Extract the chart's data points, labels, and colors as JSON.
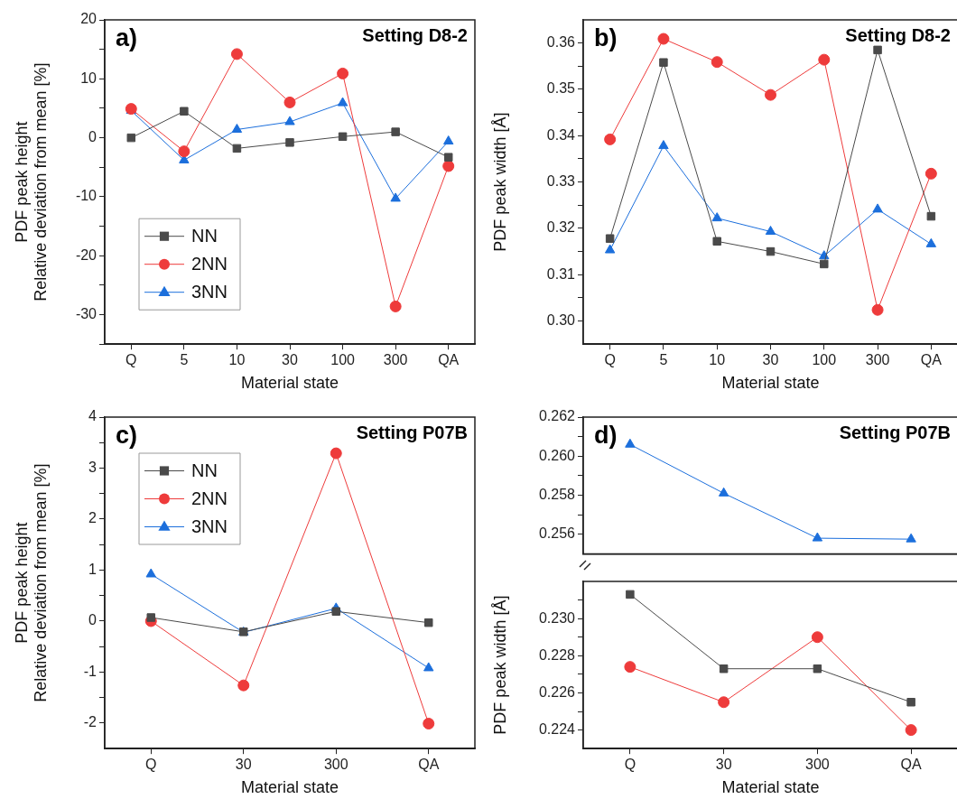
{
  "chart_data": [
    {
      "type": "line",
      "title": "Setting D8-2",
      "annotations": [
        "a)"
      ],
      "xlabel": "Material state",
      "ylabel": "PDF peak height\nRelative deviation from mean [%]",
      "categories": [
        "Q",
        "5",
        "10",
        "30",
        "100",
        "300",
        "QA"
      ],
      "ylim": [
        -35,
        20
      ],
      "yticks": [
        {
          "value": -35,
          "label": null
        },
        -30,
        {
          "value": -25,
          "label": null
        },
        -20,
        {
          "value": -15,
          "label": null
        },
        -10,
        {
          "value": -5,
          "label": null
        },
        0,
        {
          "value": 5,
          "label": null
        },
        10,
        {
          "value": 15,
          "label": null
        },
        20
      ],
      "legend": "bottom left",
      "series": [
        {
          "name": "NN",
          "color": "#4a4a4a",
          "marker": "square",
          "values": [
            0,
            4.5,
            -1.8,
            -0.8,
            0.2,
            1.0,
            -3.3
          ]
        },
        {
          "name": "2NN",
          "color": "#ee3b3b",
          "marker": "circle",
          "values": [
            4.9,
            -2.3,
            14.2,
            6.0,
            10.9,
            -28.6,
            -4.8
          ]
        },
        {
          "name": "3NN",
          "color": "#1c6fdc",
          "marker": "triangle",
          "values": [
            4.6,
            -3.8,
            1.4,
            2.7,
            5.9,
            -10.3,
            -0.6
          ]
        }
      ]
    },
    {
      "type": "line",
      "title": "Setting D8-2",
      "annotations": [
        "b)"
      ],
      "xlabel": "Material state",
      "ylabel": "PDF peak width [Å]",
      "categories": [
        "Q",
        "5",
        "10",
        "30",
        "100",
        "300",
        "QA"
      ],
      "ylim": [
        0.295,
        0.365
      ],
      "yticks": [
        {
          "value": 0.3,
          "label": "0.30"
        },
        {
          "value": 0.305,
          "label": null
        },
        {
          "value": 0.31,
          "label": "0.31"
        },
        {
          "value": 0.315,
          "label": null
        },
        {
          "value": 0.32,
          "label": "0.32"
        },
        {
          "value": 0.325,
          "label": null
        },
        {
          "value": 0.33,
          "label": "0.33"
        },
        {
          "value": 0.335,
          "label": null
        },
        {
          "value": 0.34,
          "label": "0.34"
        },
        {
          "value": 0.345,
          "label": null
        },
        {
          "value": 0.35,
          "label": "0.35"
        },
        {
          "value": 0.355,
          "label": null
        },
        {
          "value": 0.36,
          "label": "0.36"
        }
      ],
      "series": [
        {
          "color": "#4a4a4a",
          "marker": "square",
          "values": [
            0.3178,
            0.3558,
            0.3172,
            0.315,
            0.3123,
            0.3585,
            0.3226
          ]
        },
        {
          "color": "#ee3b3b",
          "marker": "circle",
          "values": [
            0.3392,
            0.3609,
            0.3559,
            0.3488,
            0.3564,
            0.3024,
            0.3318
          ]
        },
        {
          "color": "#1c6fdc",
          "marker": "triangle",
          "values": [
            0.3153,
            0.3378,
            0.3222,
            0.3193,
            0.314,
            0.3241,
            0.3166
          ]
        }
      ]
    },
    {
      "type": "line",
      "title": "Setting P07B",
      "annotations": [
        "c)"
      ],
      "xlabel": "Material state",
      "ylabel": "PDF peak height\nRelative deviation from mean [%]",
      "categories": [
        "Q",
        "30",
        "300",
        "QA"
      ],
      "ylim": [
        -2.5,
        4
      ],
      "yticks": [
        -2,
        {
          "value": -1.5,
          "label": null
        },
        -1,
        {
          "value": -0.5,
          "label": null
        },
        0,
        {
          "value": 0.5,
          "label": null
        },
        1,
        {
          "value": 1.5,
          "label": null
        },
        2,
        {
          "value": 2.5,
          "label": null
        },
        3,
        {
          "value": 3.5,
          "label": null
        },
        4
      ],
      "legend": "top left",
      "series": [
        {
          "name": "NN",
          "color": "#4a4a4a",
          "marker": "square",
          "values": [
            0.07,
            -0.21,
            0.19,
            -0.03
          ]
        },
        {
          "name": "2NN",
          "color": "#ee3b3b",
          "marker": "circle",
          "values": [
            0.0,
            -1.26,
            3.29,
            -2.01
          ]
        },
        {
          "name": "3NN",
          "color": "#1c6fdc",
          "marker": "triangle",
          "values": [
            0.92,
            -0.22,
            0.25,
            -0.92
          ]
        }
      ]
    },
    {
      "type": "line",
      "title": "Setting P07B",
      "annotations": [
        "d)"
      ],
      "categories": [
        null,
        null,
        null,
        null
      ],
      "tick_labels": "y",
      "ylim": [
        0.255,
        0.262
      ],
      "yticks": [
        0.256,
        {
          "value": 0.257,
          "label": null
        },
        0.258,
        {
          "value": 0.259,
          "label": null
        },
        {
          "value": 0.26,
          "label": "0.260"
        },
        {
          "value": 0.261,
          "label": null
        },
        0.262
      ],
      "series": [
        {
          "color": "#1c6fdc",
          "marker": "triangle",
          "values": [
            0.2606,
            0.2581,
            0.2558,
            0.25575
          ]
        }
      ]
    },
    {
      "type": "line",
      "xlabel": "Material state",
      "ylabel": "PDF peak width [Å]",
      "categories": [
        "Q",
        "30",
        "300",
        "QA"
      ],
      "ylim": [
        0.223,
        0.232
      ],
      "yticks": [
        0.224,
        {
          "value": 0.225,
          "label": null
        },
        0.226,
        {
          "value": 0.227,
          "label": null
        },
        0.228,
        {
          "value": 0.229,
          "label": null
        },
        {
          "value": 0.23,
          "label": "0.230"
        },
        {
          "value": 0.231,
          "label": null
        }
      ],
      "series": [
        {
          "color": "#4a4a4a",
          "marker": "square",
          "values": [
            0.2313,
            0.2273,
            0.2273,
            0.2255
          ]
        },
        {
          "color": "#ee3b3b",
          "marker": "circle",
          "values": [
            0.2274,
            0.2255,
            0.229,
            0.224
          ]
        }
      ]
    }
  ]
}
